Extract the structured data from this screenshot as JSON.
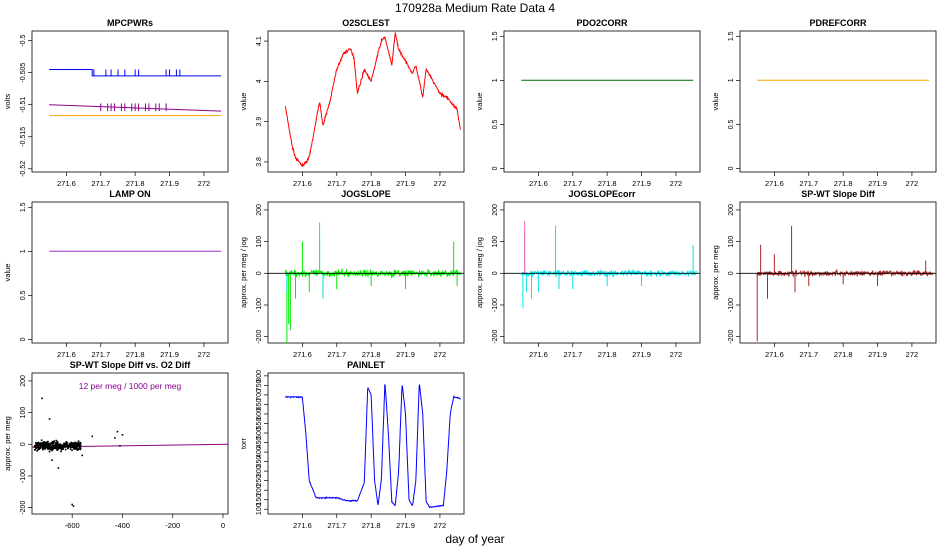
{
  "figure": {
    "title": "170928a   Medium Rate Data 4",
    "xlabel": "day of year"
  },
  "chart_data": [
    {
      "title": "MPCPWRs",
      "type": "line",
      "ylabel": "volts",
      "xlim": [
        271.5,
        272.07
      ],
      "ylim": [
        -0.5205,
        -0.4985
      ],
      "xticks": [
        271.6,
        271.7,
        271.8,
        271.9,
        272.0
      ],
      "yticks": [
        -0.52,
        -0.515,
        -0.51,
        -0.505,
        -0.5
      ],
      "series": [
        {
          "color": "#0000ff",
          "x": [
            271.55,
            271.675,
            271.675,
            272.05
          ],
          "values": [
            -0.5045,
            -0.5045,
            -0.5055,
            -0.5055
          ],
          "spikes": {
            "x": [
              271.68,
              271.715,
              271.73,
              271.75,
              271.77,
              271.8,
              271.81,
              271.89,
              271.9,
              271.92,
              271.93
            ],
            "to": -0.5045
          }
        },
        {
          "color": "#8b008b",
          "x": [
            271.55,
            272.05
          ],
          "values": [
            -0.51,
            -0.511
          ],
          "spikes": {
            "x": [
              271.7,
              271.72,
              271.73,
              271.74,
              271.76,
              271.77,
              271.79,
              271.8,
              271.81,
              271.83,
              271.84,
              271.86,
              271.87,
              271.89
            ],
            "to": -0.5098
          }
        },
        {
          "color": "#ffa500",
          "x": [
            271.55,
            272.05
          ],
          "values": [
            -0.5117,
            -0.5117
          ]
        }
      ]
    },
    {
      "title": "O2SCLEST",
      "type": "line",
      "ylabel": "value",
      "xlim": [
        271.5,
        272.07
      ],
      "ylim": [
        3.775,
        4.125
      ],
      "xticks": [
        271.6,
        271.7,
        271.8,
        271.9,
        272.0
      ],
      "yticks": [
        3.8,
        3.9,
        4.0,
        4.1
      ],
      "series": [
        {
          "color": "#ff0000",
          "x": [
            271.55,
            271.57,
            271.58,
            271.6,
            271.62,
            271.65,
            271.66,
            271.68,
            271.7,
            271.72,
            271.74,
            271.75,
            271.76,
            271.78,
            271.8,
            271.82,
            271.83,
            271.84,
            271.86,
            271.87,
            271.88,
            271.9,
            271.92,
            271.93,
            271.95,
            271.96,
            272.0,
            272.02,
            272.04,
            272.05,
            272.06
          ],
          "values": [
            3.94,
            3.84,
            3.81,
            3.79,
            3.81,
            3.95,
            3.89,
            3.95,
            4.03,
            4.07,
            4.08,
            4.06,
            3.97,
            4.03,
            4.0,
            4.07,
            4.1,
            4.11,
            4.04,
            4.12,
            4.08,
            4.05,
            4.02,
            4.04,
            3.96,
            4.03,
            3.97,
            3.96,
            3.94,
            3.93,
            3.88
          ],
          "noise": 0.006
        }
      ]
    },
    {
      "title": "PDO2CORR",
      "type": "line",
      "ylabel": "value",
      "xlim": [
        271.5,
        272.07
      ],
      "ylim": [
        -0.04,
        1.56
      ],
      "xticks": [
        271.6,
        271.7,
        271.8,
        271.9,
        272.0
      ],
      "yticks": [
        0.0,
        0.5,
        1.0,
        1.5
      ],
      "series": [
        {
          "color": "#006400",
          "x": [
            271.55,
            272.05
          ],
          "values": [
            1.0,
            1.0
          ]
        }
      ]
    },
    {
      "title": "PDREFCORR",
      "type": "line",
      "ylabel": "value",
      "xlim": [
        271.5,
        272.07
      ],
      "ylim": [
        -0.04,
        1.56
      ],
      "xticks": [
        271.6,
        271.7,
        271.8,
        271.9,
        272.0
      ],
      "yticks": [
        0.0,
        0.5,
        1.0,
        1.5
      ],
      "series": [
        {
          "color": "#ffa500",
          "x": [
            271.55,
            272.05
          ],
          "values": [
            1.0,
            1.0
          ]
        }
      ]
    },
    {
      "title": "LAMP ON",
      "type": "line",
      "ylabel": "value",
      "xlim": [
        271.5,
        272.07
      ],
      "ylim": [
        -0.04,
        1.56
      ],
      "xticks": [
        271.6,
        271.7,
        271.8,
        271.9,
        272.0
      ],
      "yticks": [
        0.0,
        0.5,
        1.0,
        1.5
      ],
      "series": [
        {
          "color": "#9932cc",
          "x": [
            271.55,
            272.05
          ],
          "values": [
            1.0,
            1.0
          ]
        }
      ]
    },
    {
      "title": "JOGSLOPE",
      "type": "line",
      "ylabel": "approx. per meg / jog",
      "xlim": [
        271.5,
        272.07
      ],
      "ylim": [
        -220,
        225
      ],
      "xticks": [
        271.6,
        271.7,
        271.8,
        271.9,
        272.0
      ],
      "yticks": [
        -200,
        -100,
        0,
        100,
        200
      ],
      "hline": 0,
      "series": [
        {
          "color": "#00ee00",
          "x": [
            271.55,
            272.06
          ],
          "values": [
            0,
            0
          ],
          "noise": 18,
          "spikes": {
            "x": [
              271.555,
              271.56,
              271.565,
              271.58,
              271.6,
              271.62,
              271.65,
              271.66,
              271.7,
              271.8,
              271.9,
              272.04,
              272.05
            ],
            "values": [
              -220,
              -160,
              -180,
              -80,
              100,
              -60,
              120,
              -40,
              -50,
              -40,
              -50,
              100,
              -40
            ]
          }
        },
        {
          "color": "#00e5ee",
          "x": [],
          "values": [],
          "spikes": {
            "x": [
              271.555,
              271.65,
              271.66
            ],
            "values": [
              -60,
              160,
              -80
            ]
          }
        }
      ]
    },
    {
      "title": "JOGSLOPEcorr",
      "type": "line",
      "ylabel": "approx. per meg / jog",
      "xlim": [
        271.5,
        272.07
      ],
      "ylim": [
        -220,
        225
      ],
      "xticks": [
        271.6,
        271.7,
        271.8,
        271.9,
        272.0
      ],
      "yticks": [
        -200,
        -100,
        0,
        100,
        200
      ],
      "hline": 0,
      "series": [
        {
          "color": "#00e5ee",
          "x": [
            271.55,
            272.06
          ],
          "values": [
            0,
            0
          ],
          "noise": 16,
          "spikes": {
            "x": [
              271.555,
              271.56,
              271.565,
              271.58,
              271.6,
              271.65,
              271.66,
              271.7,
              271.8,
              271.9,
              272.05
            ],
            "values": [
              -110,
              140,
              -60,
              -80,
              -60,
              150,
              -50,
              -50,
              -40,
              -40,
              90
            ]
          }
        },
        {
          "color": "#ff69b4",
          "x": [],
          "values": [],
          "spikes": {
            "x": [
              271.56
            ],
            "values": [
              165
            ]
          }
        }
      ]
    },
    {
      "title": "SP-WT Slope Diff",
      "type": "line",
      "ylabel": "approx. per meg",
      "xlim": [
        271.5,
        272.07
      ],
      "ylim": [
        -220,
        225
      ],
      "xticks": [
        271.6,
        271.7,
        271.8,
        271.9,
        272.0
      ],
      "yticks": [
        -200,
        -100,
        0,
        100,
        200
      ],
      "hline": 0,
      "series": [
        {
          "color": "#a52a2a",
          "x": [
            271.55,
            272.06
          ],
          "values": [
            0,
            0
          ],
          "noise": 14,
          "spikes": {
            "x": [
              271.55,
              271.56,
              271.58,
              271.6,
              271.65,
              271.66,
              271.7,
              271.8,
              271.9,
              272.04
            ],
            "values": [
              -215,
              90,
              -80,
              60,
              150,
              -60,
              -40,
              -35,
              -40,
              40
            ]
          }
        }
      ]
    },
    {
      "title": "SP-WT Slope Diff vs. O2 Diff",
      "type": "scatter",
      "ylabel": "approx. per meg",
      "xlim": [
        -760,
        20
      ],
      "ylim": [
        -220,
        225
      ],
      "xticks": [
        -600,
        -400,
        -200,
        0
      ],
      "yticks": [
        -200,
        -100,
        0,
        100,
        200
      ],
      "annotation": "12 per meg / 1000 per meg",
      "annotation_color": "#8b008b",
      "fit_line": {
        "color": "#8b008b",
        "x": [
          -760,
          20
        ],
        "values": [
          -9,
          0.2
        ]
      },
      "cluster": {
        "color": "#000000",
        "x_range": [
          -750,
          -565
        ],
        "y_center": -5,
        "y_spread": 22,
        "n": 420
      },
      "outliers": {
        "x": [
          -720,
          -690,
          -680,
          -655,
          -600,
          -595,
          -560,
          -520,
          -430,
          -420,
          -410,
          -400
        ],
        "values": [
          145,
          80,
          -50,
          -75,
          -190,
          -195,
          -35,
          25,
          20,
          40,
          -5,
          30
        ]
      }
    },
    {
      "title": "PAINLET",
      "type": "line",
      "ylabel": "torr",
      "xlim": [
        271.5,
        272.07
      ],
      "ylim": [
        75,
        815
      ],
      "xticks": [
        271.6,
        271.7,
        271.8,
        271.9,
        272.0
      ],
      "yticks": [
        100,
        150,
        200,
        250,
        300,
        350,
        400,
        450,
        500,
        550,
        600,
        650,
        700,
        750,
        800
      ],
      "series": [
        {
          "color": "#0000ff",
          "x": [
            271.55,
            271.6,
            271.61,
            271.62,
            271.64,
            271.7,
            271.73,
            271.76,
            271.78,
            271.79,
            271.8,
            271.81,
            271.82,
            271.83,
            271.84,
            271.85,
            271.86,
            271.87,
            271.88,
            271.89,
            271.9,
            271.91,
            271.92,
            271.93,
            271.94,
            271.95,
            271.96,
            271.97,
            272.01,
            272.02,
            272.03,
            272.04,
            272.06
          ],
          "values": [
            690,
            688,
            500,
            250,
            160,
            160,
            145,
            145,
            240,
            740,
            700,
            250,
            120,
            260,
            770,
            500,
            140,
            120,
            300,
            760,
            600,
            150,
            115,
            250,
            765,
            600,
            140,
            110,
            120,
            300,
            600,
            690,
            680
          ],
          "noise": 5
        }
      ]
    }
  ]
}
